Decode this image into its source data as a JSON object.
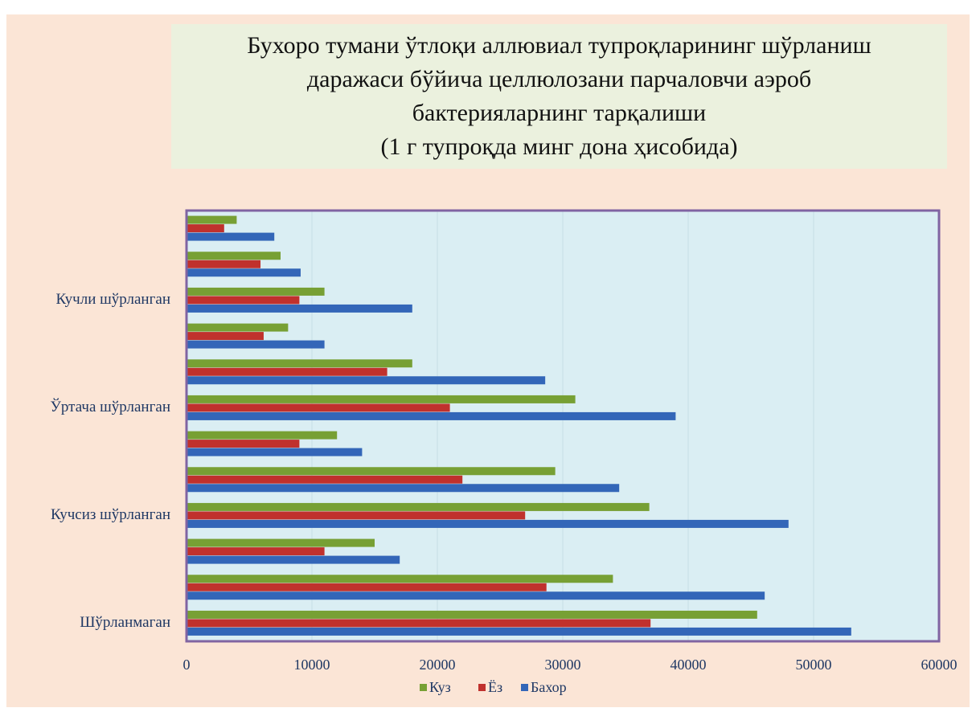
{
  "chart_data": {
    "type": "hbar",
    "title": "Бухоро тумани ўтлоқи аллювиал  тупроқларининг шўрланиш\nдаражаси бўйича целлюлозани парчаловчи аэроб\nбактерияларнинг тарқалиши\n(1 г тупроқда минг дона ҳисобида)",
    "categories": [
      "Шўрланмаган",
      null,
      null,
      "Кучсиз шўрланган",
      null,
      null,
      "Ўртача шўрланган",
      null,
      null,
      "Кучли шўрланган",
      null,
      null
    ],
    "series": [
      {
        "name": "Куз",
        "color": "#77a034",
        "values": [
          45500,
          34000,
          15000,
          36900,
          29400,
          12000,
          31000,
          18000,
          8100,
          11000,
          7500,
          4000
        ]
      },
      {
        "name": "Ёз",
        "color": "#c0312d",
        "values": [
          37000,
          28700,
          11000,
          27000,
          22000,
          9000,
          21000,
          16000,
          6150,
          9000,
          5900,
          3000
        ]
      },
      {
        "name": "Бахор",
        "color": "#3366b8",
        "values": [
          53000,
          46100,
          17000,
          48000,
          34500,
          14000,
          39000,
          28600,
          11000,
          18000,
          9100,
          7000
        ]
      }
    ],
    "xlim": [
      0,
      60000
    ],
    "xticks": [
      0,
      10000,
      20000,
      30000,
      40000,
      50000,
      60000
    ],
    "grid": true,
    "legend": "bottom"
  }
}
